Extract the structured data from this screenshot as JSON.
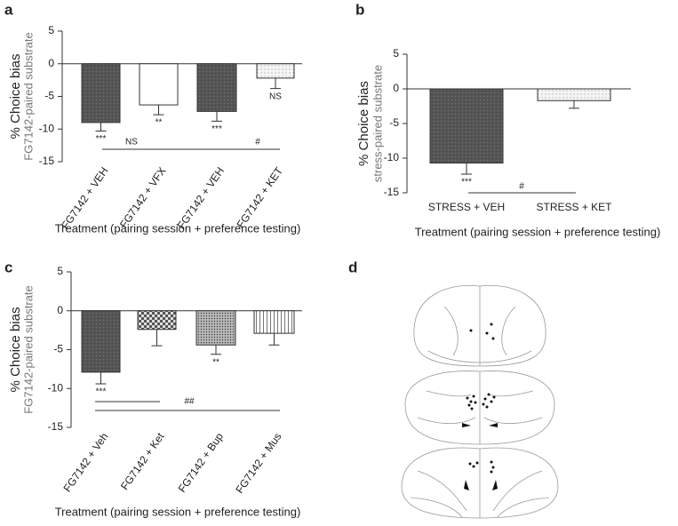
{
  "chart_data": [
    {
      "type": "bar",
      "panel_label": "a",
      "ylabel": "% Choice bias",
      "ylabel2": "FG7142-paired substrate",
      "xlabel": "Treatment (pairing session + preference testing)",
      "categories": [
        "FG7142 + VEH",
        "FG7142 + VFX",
        "FG7142 + VEH",
        "FG7142 + KET"
      ],
      "values": [
        -9,
        -6.3,
        -7.3,
        -2.2
      ],
      "errors": [
        1.3,
        1.5,
        1.5,
        1.6
      ],
      "fills": [
        "dark",
        "white",
        "dark",
        "light-dots"
      ],
      "annotations": [
        "***",
        "**",
        "***",
        "NS"
      ],
      "comparisons": [
        {
          "label": "NS"
        },
        {
          "label": "#"
        }
      ],
      "ylim": [
        -15,
        5
      ],
      "yticks": [
        5,
        0,
        -5,
        -10,
        -15
      ],
      "grid": false
    },
    {
      "type": "bar",
      "panel_label": "b",
      "ylabel": "% Choice bias",
      "ylabel2": "stress-paired substrate",
      "xlabel": "Treatment (pairing session + preference testing)",
      "categories": [
        "STRESS + VEH",
        "STRESS + KET"
      ],
      "values": [
        -10.7,
        -1.7
      ],
      "errors": [
        1.6,
        1.1
      ],
      "fills": [
        "dark",
        "light-dots"
      ],
      "annotations": [
        "***",
        null
      ],
      "comparisons": [
        {
          "label": "#"
        }
      ],
      "ylim": [
        -15,
        5
      ],
      "yticks": [
        5,
        0,
        -5,
        -10,
        -15
      ],
      "grid": false
    },
    {
      "type": "bar",
      "panel_label": "c",
      "ylabel": "% Choice bias",
      "ylabel2": "FG7142-paired substrate",
      "xlabel": "Treatment (pairing session + preference testing)",
      "categories": [
        "FG7142 + Veh",
        "FG7142 + Ket",
        "FG7142 + Bup",
        "FG7142 + Mus"
      ],
      "values": [
        -7.9,
        -2.4,
        -4.4,
        -2.9
      ],
      "errors": [
        1.5,
        2.1,
        1.2,
        1.5
      ],
      "fills": [
        "dark",
        "checker",
        "dark-dots",
        "vstripes"
      ],
      "annotations": [
        "***",
        null,
        "**",
        null
      ],
      "comparisons": [
        {
          "label": "##"
        }
      ],
      "ylim": [
        -15,
        5
      ],
      "yticks": [
        5,
        0,
        -5,
        -10,
        -15
      ],
      "grid": false
    }
  ],
  "panel_d": {
    "panel_label": "d"
  }
}
